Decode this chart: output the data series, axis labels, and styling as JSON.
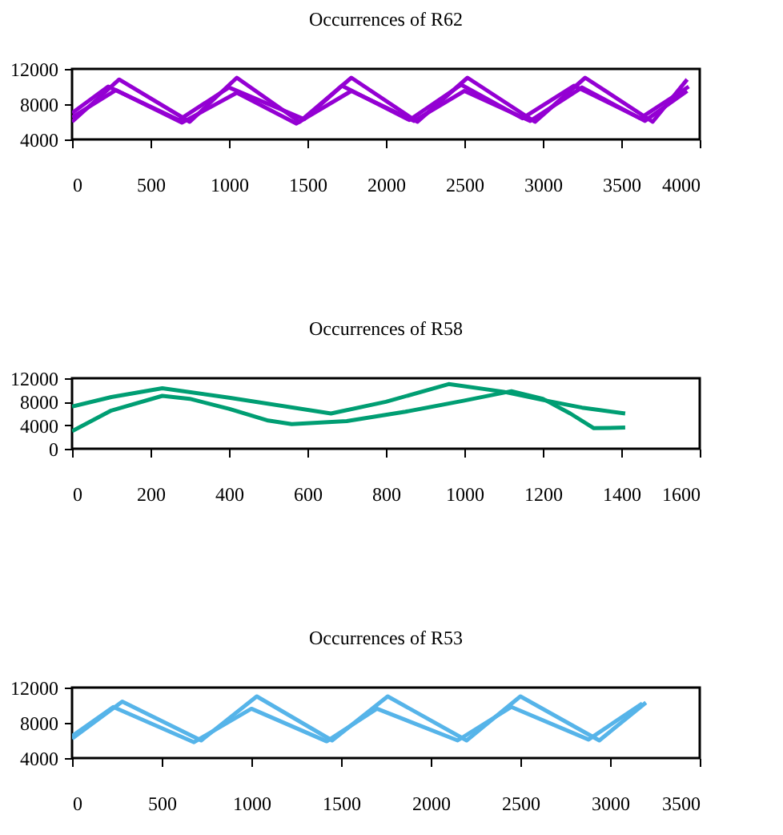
{
  "chart_data": [
    {
      "type": "line",
      "title": "Occurrences of R62",
      "xlim": [
        0,
        4000
      ],
      "xticks": [
        0,
        500,
        1000,
        1500,
        2000,
        2500,
        3000,
        3500,
        4000
      ],
      "ylim": [
        4000,
        12000
      ],
      "yticks": [
        4000,
        8000,
        12000
      ],
      "grid": false,
      "marker": "none",
      "line_style": "solid",
      "series": [
        {
          "color": "#9400d3",
          "x": [
            0,
            300,
            750,
            1050,
            1450,
            1780,
            2200,
            2520,
            2950,
            3270,
            3700,
            3920
          ],
          "values": [
            6000,
            10800,
            6000,
            11000,
            6000,
            11000,
            6000,
            11000,
            6000,
            11000,
            6000,
            10800
          ]
        },
        {
          "color": "#9400d3",
          "x": [
            0,
            280,
            700,
            1050,
            1430,
            1780,
            2180,
            2500,
            2920,
            3250,
            3650,
            3920
          ],
          "values": [
            6500,
            9600,
            5900,
            9300,
            5800,
            9500,
            6100,
            9500,
            6100,
            9900,
            6100,
            9500
          ]
        },
        {
          "color": "#9400d3",
          "x": [
            0,
            230,
            680,
            1000,
            1480,
            1720,
            2150,
            2480,
            2870,
            3200,
            3620,
            3930
          ],
          "values": [
            7000,
            10000,
            6200,
            9900,
            6300,
            10100,
            6200,
            10200,
            6400,
            10100,
            6400,
            10000
          ]
        }
      ]
    },
    {
      "type": "line",
      "title": "Occurrences of R58",
      "xlim": [
        0,
        1600
      ],
      "xticks": [
        0,
        200,
        400,
        600,
        800,
        1000,
        1200,
        1400,
        1600
      ],
      "ylim": [
        0,
        12000
      ],
      "yticks": [
        0,
        4000,
        8000,
        12000
      ],
      "grid": false,
      "marker": "none",
      "line_style": "solid",
      "series": [
        {
          "color": "#009e73",
          "x": [
            0,
            100,
            230,
            400,
            660,
            800,
            960,
            1100,
            1200,
            1300,
            1410
          ],
          "values": [
            7200,
            8800,
            10300,
            8700,
            6000,
            8000,
            11000,
            9700,
            8300,
            7000,
            6000
          ]
        },
        {
          "color": "#009e73",
          "x": [
            0,
            100,
            230,
            300,
            400,
            500,
            560,
            700,
            850,
            1000,
            1120,
            1200,
            1270,
            1330,
            1410
          ],
          "values": [
            3000,
            6500,
            9000,
            8500,
            6800,
            4800,
            4200,
            4700,
            6300,
            8200,
            9800,
            8500,
            6000,
            3500,
            3600
          ]
        }
      ]
    },
    {
      "type": "line",
      "title": "Occurrences of R53",
      "xlim": [
        0,
        3500
      ],
      "xticks": [
        0,
        500,
        1000,
        1500,
        2000,
        2500,
        3000,
        3500
      ],
      "ylim": [
        4000,
        12000
      ],
      "yticks": [
        4000,
        8000,
        12000
      ],
      "grid": false,
      "marker": "none",
      "line_style": "solid",
      "series": [
        {
          "color": "#56b4e9",
          "x": [
            0,
            280,
            720,
            1030,
            1450,
            1760,
            2200,
            2500,
            2940,
            3200
          ],
          "values": [
            6200,
            10400,
            6000,
            11000,
            6000,
            11000,
            6000,
            11000,
            6000,
            10300
          ]
        },
        {
          "color": "#56b4e9",
          "x": [
            0,
            230,
            680,
            1000,
            1420,
            1700,
            2150,
            2450,
            2880,
            3180
          ],
          "values": [
            6500,
            9800,
            5800,
            9600,
            5900,
            9600,
            6000,
            9800,
            6100,
            10200
          ]
        }
      ]
    }
  ]
}
